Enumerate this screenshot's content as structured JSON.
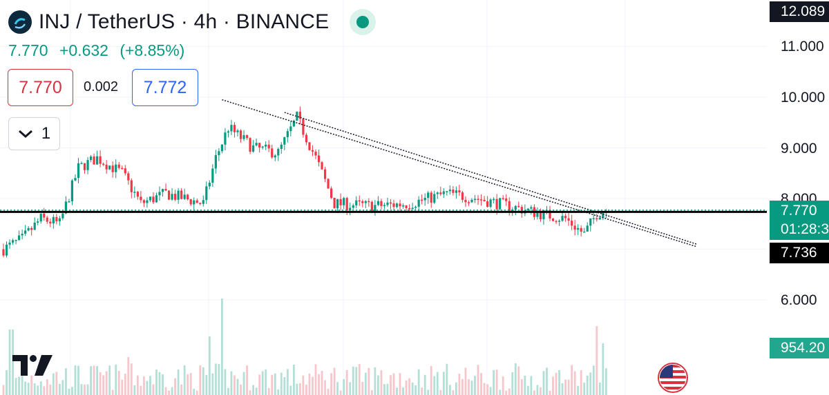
{
  "header": {
    "title": "INJ / TetherUS · 4h · BINANCE",
    "last": "7.770",
    "change": "+0.632",
    "change_pct": "(+8.85%)"
  },
  "trade": {
    "sell": "7.770",
    "spread": "0.002",
    "buy": "7.772"
  },
  "indicators_toggle": {
    "count": "1"
  },
  "price_axis": {
    "ticks": [
      "11.000",
      "10.000",
      "9.000",
      "8.000",
      "6.000"
    ],
    "top_label": "12.089",
    "price_label": "7.770",
    "countdown": "01:28:3",
    "line_label": "7.736",
    "volume_label": "954.20"
  },
  "colors": {
    "up": "#089981",
    "down": "#f23645",
    "grid": "#f0f3fa",
    "hline": "#000000"
  },
  "icons": {
    "logo": "inj-logo-icon",
    "dot": "live-status-icon",
    "chevron": "chevron-down-icon",
    "brand": "tradingview-logo-icon",
    "flag": "us-flag-icon"
  },
  "chart_data": {
    "type": "candlestick",
    "symbol": "INJ / TetherUS",
    "interval": "4h",
    "exchange": "BINANCE",
    "ylim": [
      5.4,
      12.3
    ],
    "horizontal_line": 7.736,
    "current_price": 7.77,
    "trendline": {
      "from_index": 70,
      "from_price": 9.95,
      "to_index": 222,
      "to_price": 7.05
    },
    "waypoints": [
      [
        0,
        7.0
      ],
      [
        6,
        7.2
      ],
      [
        12,
        7.6
      ],
      [
        18,
        7.5
      ],
      [
        24,
        8.6
      ],
      [
        30,
        8.8
      ],
      [
        38,
        8.5
      ],
      [
        44,
        7.9
      ],
      [
        52,
        8.1
      ],
      [
        58,
        8.0
      ],
      [
        64,
        7.9
      ],
      [
        68,
        8.8
      ],
      [
        72,
        9.4
      ],
      [
        80,
        9.0
      ],
      [
        88,
        8.9
      ],
      [
        94,
        9.6
      ],
      [
        100,
        8.8
      ],
      [
        106,
        7.9
      ],
      [
        118,
        7.85
      ],
      [
        130,
        7.9
      ],
      [
        142,
        8.1
      ],
      [
        152,
        8.0
      ],
      [
        162,
        7.85
      ],
      [
        172,
        7.7
      ],
      [
        180,
        7.6
      ],
      [
        186,
        7.3
      ],
      [
        190,
        7.7
      ],
      [
        193,
        7.77
      ]
    ]
  }
}
